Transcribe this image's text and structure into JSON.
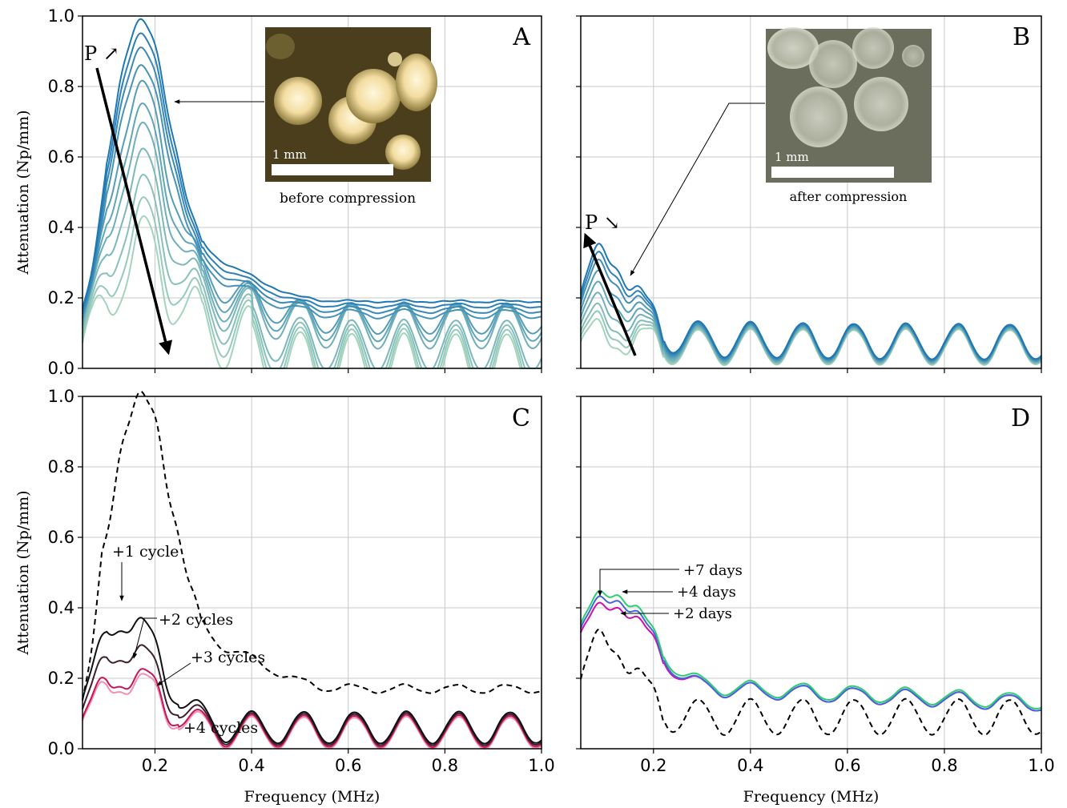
{
  "chart_data": [
    {
      "panel": "A",
      "type": "line",
      "ylabel": "Attenuation (Np/mm)",
      "xlabel": "",
      "xlim": [
        0.05,
        1.0
      ],
      "ylim": [
        0.0,
        1.0
      ],
      "xticks": [
        "0.2",
        "0.4",
        "0.6",
        "0.8",
        "1.0"
      ],
      "yticks": [
        "0.0",
        "0.2",
        "0.4",
        "0.6",
        "0.8",
        "1.0"
      ],
      "grid": true,
      "series_count": 11,
      "series_peak_values": [
        0.97,
        0.93,
        0.89,
        0.84,
        0.77,
        0.7,
        0.64,
        0.56,
        0.48,
        0.41,
        0.35
      ],
      "series_tail_values": [
        0.19,
        0.18,
        0.17,
        0.16,
        0.15,
        0.14,
        0.13,
        0.12,
        0.1,
        0.08,
        0.06
      ],
      "inset_label": "before compression",
      "scale_bar": "1 mm",
      "pressure_label": "P ↗",
      "colors": [
        "#1f77b4",
        "#a3d4bc"
      ]
    },
    {
      "panel": "B",
      "type": "line",
      "ylabel": "",
      "xlabel": "",
      "xlim": [
        0.05,
        1.0
      ],
      "ylim": [
        0.0,
        1.0
      ],
      "grid": true,
      "series_count": 9,
      "series_peak_values": [
        0.33,
        0.31,
        0.29,
        0.26,
        0.23,
        0.2,
        0.17,
        0.15,
        0.13
      ],
      "inset_label": "after compression",
      "scale_bar": "1 mm",
      "pressure_label": "P ↘",
      "colors": [
        "#1f77b4",
        "#a3d4bc"
      ]
    },
    {
      "panel": "C",
      "type": "line",
      "ylabel": "Attenuation (Np/mm)",
      "xlabel": "Frequency (MHz)",
      "xlim": [
        0.05,
        1.0
      ],
      "ylim": [
        0.0,
        1.0
      ],
      "xticks": [
        "0.2",
        "0.4",
        "0.6",
        "0.8",
        "1.0"
      ],
      "yticks": [
        "0.0",
        "0.2",
        "0.4",
        "0.6",
        "0.8",
        "1.0"
      ],
      "grid": true,
      "series": [
        {
          "name": "+1 cycle",
          "peak": 0.41,
          "tail": 0.09,
          "color": "#111111"
        },
        {
          "name": "+2 cycles",
          "peak": 0.33,
          "tail": 0.08,
          "color": "#3b2030"
        },
        {
          "name": "+3 cycles",
          "peak": 0.26,
          "tail": 0.06,
          "color": "#c2185b"
        },
        {
          "name": "+4 cycles",
          "peak": 0.25,
          "tail": 0.05,
          "color": "#f48fb1"
        }
      ],
      "reference_dashed": {
        "peak": 1.0,
        "tail": 0.17,
        "color": "#000000"
      }
    },
    {
      "panel": "D",
      "type": "line",
      "ylabel": "",
      "xlabel": "Frequency (MHz)",
      "xlim": [
        0.05,
        1.0
      ],
      "ylim": [
        0.0,
        1.0
      ],
      "xticks": [
        "0.2",
        "0.4",
        "0.6",
        "0.8",
        "1.0"
      ],
      "grid": true,
      "series": [
        {
          "name": "+7 days",
          "peak": 0.46,
          "tail": 0.12,
          "color": "#2ecc71"
        },
        {
          "name": "+4 days",
          "peak": 0.45,
          "tail": 0.12,
          "color": "#4466dd"
        },
        {
          "name": "+2 days",
          "peak": 0.43,
          "tail": 0.12,
          "color": "#cc11aa"
        }
      ],
      "reference_dashed": {
        "peak": 0.33,
        "tail": 0.08,
        "color": "#000000"
      }
    }
  ],
  "labels": {
    "A": "A",
    "B": "B",
    "C": "C",
    "D": "D",
    "ylabel": "Attenuation (Np/mm)",
    "xlabel": "Frequency (MHz)",
    "before": "before compression",
    "after": "after compression",
    "scale": "1 mm",
    "pA": "P ↗",
    "pB": "P ↘",
    "c1": "+1 cycle",
    "c2": "+2 cycles",
    "c3": "+3 cycles",
    "c4": "+4 cycles",
    "d7": "+7 days",
    "d4": "+4 days",
    "d2": "+2 days"
  }
}
